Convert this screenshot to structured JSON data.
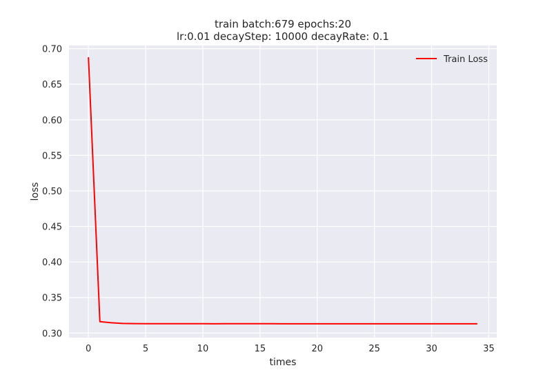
{
  "chart_data": {
    "type": "line",
    "title": "train batch:679 epochs:20",
    "subtitle": "lr:0.01  decayStep: 10000  decayRate: 0.1",
    "xlabel": "times",
    "ylabel": "loss",
    "xlim": [
      -1.7,
      35.7
    ],
    "ylim": [
      0.2935,
      0.7045
    ],
    "x_ticks": [
      0,
      5,
      10,
      15,
      20,
      25,
      30,
      35
    ],
    "y_ticks": [
      0.3,
      0.35,
      0.4,
      0.45,
      0.5,
      0.55,
      0.6,
      0.65,
      0.7
    ],
    "grid": true,
    "legend_position": "top-right",
    "colors": {
      "background": "#eaeaf2",
      "grid": "#ffffff",
      "series": "#ff0000"
    },
    "series": [
      {
        "name": "Train Loss",
        "color": "#ff0000",
        "x": [
          0,
          1,
          2,
          3,
          4,
          5,
          6,
          7,
          8,
          9,
          10,
          11,
          12,
          13,
          14,
          15,
          16,
          17,
          18,
          19,
          20,
          21,
          22,
          23,
          24,
          25,
          26,
          27,
          28,
          29,
          30,
          31,
          32,
          33,
          34
        ],
        "y": [
          0.688,
          0.316,
          0.3145,
          0.3135,
          0.3132,
          0.3131,
          0.3131,
          0.3131,
          0.3131,
          0.3131,
          0.3131,
          0.313,
          0.3131,
          0.3131,
          0.3131,
          0.3131,
          0.3131,
          0.313,
          0.313,
          0.313,
          0.313,
          0.313,
          0.313,
          0.313,
          0.313,
          0.313,
          0.313,
          0.313,
          0.313,
          0.313,
          0.313,
          0.313,
          0.313,
          0.313,
          0.313
        ]
      }
    ]
  }
}
